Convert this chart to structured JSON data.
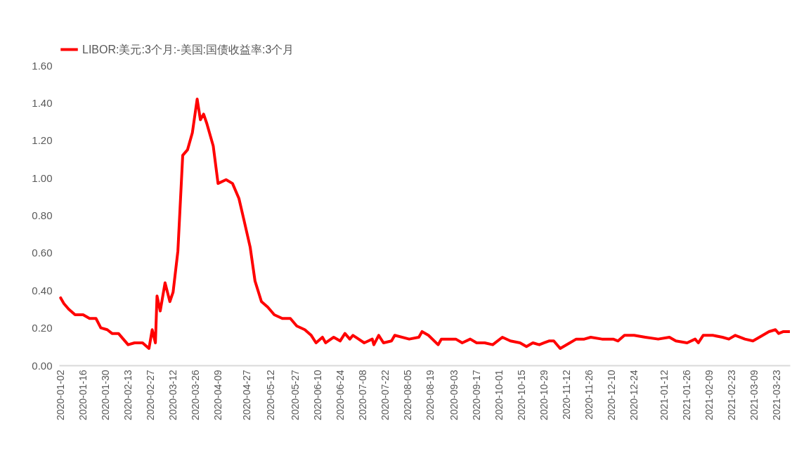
{
  "chart_data": {
    "type": "line",
    "legend": "top",
    "grid": false,
    "line_style": "solid",
    "marker": "none",
    "xlim": [
      "2020-01-01",
      "2021-03-31"
    ],
    "xticks": [
      "2020-01-02",
      "2020-01-16",
      "2020-01-30",
      "2020-02-13",
      "2020-02-27",
      "2020-03-12",
      "2020-03-26",
      "2020-04-09",
      "2020-04-27",
      "2020-05-12",
      "2020-05-27",
      "2020-06-10",
      "2020-06-24",
      "2020-07-08",
      "2020-07-22",
      "2020-08-05",
      "2020-08-19",
      "2020-09-03",
      "2020-09-17",
      "2020-10-01",
      "2020-10-15",
      "2020-10-29",
      "2020-11-12",
      "2020-11-26",
      "2020-12-10",
      "2020-12-24",
      "2021-01-12",
      "2021-01-26",
      "2021-02-09",
      "2021-02-23",
      "2021-03-09",
      "2021-03-23"
    ],
    "ylim": [
      0,
      1.6
    ],
    "yticks": [
      {
        "value": 0,
        "label": "0.00"
      },
      {
        "value": 0.2,
        "label": "0.20"
      },
      {
        "value": 0.4,
        "label": "0.40"
      },
      {
        "value": 0.6,
        "label": "0.60"
      },
      {
        "value": 0.8,
        "label": "0.80"
      },
      {
        "value": 1,
        "label": "1.00"
      },
      {
        "value": 1.2,
        "label": "1.20"
      },
      {
        "value": 1.4,
        "label": "1.40"
      },
      {
        "value": 1.6,
        "label": "1.60"
      }
    ],
    "x": [
      "2020-01-02",
      "2020-01-04",
      "2020-01-07",
      "2020-01-11",
      "2020-01-16",
      "2020-01-20",
      "2020-01-24",
      "2020-01-27",
      "2020-01-31",
      "2020-02-03",
      "2020-02-07",
      "2020-02-10",
      "2020-02-13",
      "2020-02-17",
      "2020-02-22",
      "2020-02-26",
      "2020-02-28",
      "2020-03-01",
      "2020-03-02",
      "2020-03-04",
      "2020-03-07",
      "2020-03-10",
      "2020-03-12",
      "2020-03-15",
      "2020-03-18",
      "2020-03-21",
      "2020-03-24",
      "2020-03-27",
      "2020-03-29",
      "2020-03-31",
      "2020-04-02",
      "2020-04-06",
      "2020-04-09",
      "2020-04-14",
      "2020-04-18",
      "2020-04-22",
      "2020-04-25",
      "2020-04-29",
      "2020-05-02",
      "2020-05-06",
      "2020-05-10",
      "2020-05-14",
      "2020-05-19",
      "2020-05-24",
      "2020-05-28",
      "2020-06-02",
      "2020-06-06",
      "2020-06-09",
      "2020-06-13",
      "2020-06-15",
      "2020-06-20",
      "2020-06-24",
      "2020-06-27",
      "2020-06-30",
      "2020-07-02",
      "2020-07-09",
      "2020-07-14",
      "2020-07-15",
      "2020-07-18",
      "2020-07-21",
      "2020-07-26",
      "2020-07-28",
      "2020-08-06",
      "2020-08-12",
      "2020-08-14",
      "2020-08-18",
      "2020-08-24",
      "2020-08-26",
      "2020-09-04",
      "2020-09-08",
      "2020-09-13",
      "2020-09-17",
      "2020-09-22",
      "2020-09-27",
      "2020-10-03",
      "2020-10-08",
      "2020-10-14",
      "2020-10-18",
      "2020-10-22",
      "2020-10-26",
      "2020-10-29",
      "2020-11-01",
      "2020-11-04",
      "2020-11-08",
      "2020-11-14",
      "2020-11-18",
      "2020-11-23",
      "2020-11-27",
      "2020-12-04",
      "2020-12-11",
      "2020-12-14",
      "2020-12-18",
      "2020-12-24",
      "2020-12-31",
      "2021-01-08",
      "2021-01-15",
      "2021-01-19",
      "2021-01-26",
      "2021-01-31",
      "2021-02-02",
      "2021-02-05",
      "2021-02-11",
      "2021-02-17",
      "2021-02-21",
      "2021-02-25",
      "2021-03-03",
      "2021-03-08",
      "2021-03-12",
      "2021-03-18",
      "2021-03-22",
      "2021-03-24",
      "2021-03-27",
      "2021-03-31"
    ],
    "series": [
      {
        "name": "LIBOR:美元:3个月:-美国:国债收益率:3个月",
        "color": "#ff0000",
        "values": [
          0.36,
          0.33,
          0.3,
          0.27,
          0.27,
          0.25,
          0.25,
          0.2,
          0.19,
          0.17,
          0.17,
          0.14,
          0.11,
          0.12,
          0.12,
          0.09,
          0.19,
          0.12,
          0.37,
          0.29,
          0.44,
          0.34,
          0.39,
          0.61,
          1.12,
          1.15,
          1.24,
          1.42,
          1.31,
          1.34,
          1.29,
          1.17,
          0.97,
          0.99,
          0.97,
          0.89,
          0.78,
          0.63,
          0.45,
          0.34,
          0.31,
          0.27,
          0.25,
          0.25,
          0.21,
          0.19,
          0.16,
          0.12,
          0.15,
          0.12,
          0.15,
          0.13,
          0.17,
          0.14,
          0.16,
          0.12,
          0.14,
          0.11,
          0.16,
          0.12,
          0.13,
          0.16,
          0.14,
          0.15,
          0.18,
          0.16,
          0.11,
          0.14,
          0.14,
          0.12,
          0.14,
          0.12,
          0.12,
          0.11,
          0.15,
          0.13,
          0.12,
          0.1,
          0.12,
          0.11,
          0.12,
          0.13,
          0.13,
          0.09,
          0.12,
          0.14,
          0.14,
          0.15,
          0.14,
          0.14,
          0.13,
          0.16,
          0.16,
          0.15,
          0.14,
          0.15,
          0.13,
          0.12,
          0.14,
          0.12,
          0.16,
          0.16,
          0.15,
          0.14,
          0.16,
          0.14,
          0.13,
          0.15,
          0.18,
          0.19,
          0.17,
          0.18,
          0.18
        ]
      }
    ]
  }
}
